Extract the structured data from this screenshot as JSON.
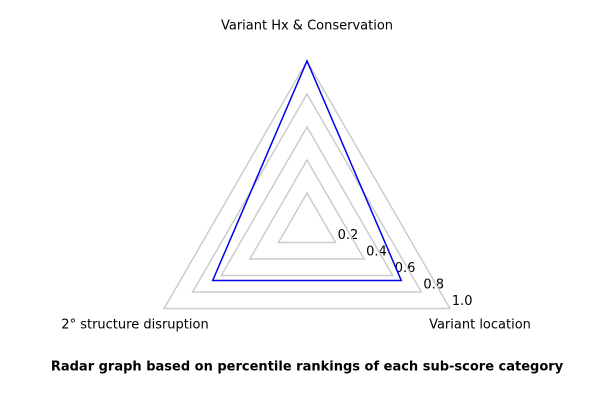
{
  "chart_data": {
    "type": "radar",
    "title": "Radar graph based on percentile rankings of each sub-score category",
    "categories": [
      "Variant Hx & Conservation",
      "Variant location",
      "2° structure disruption"
    ],
    "values": [
      1.0,
      0.66,
      0.66
    ],
    "color": "#0000ee",
    "rlim": [
      0,
      1
    ],
    "rticks": [
      0.2,
      0.4,
      0.6,
      0.8,
      {
        "value": 1,
        "label": "1.0"
      }
    ],
    "grid": true
  }
}
